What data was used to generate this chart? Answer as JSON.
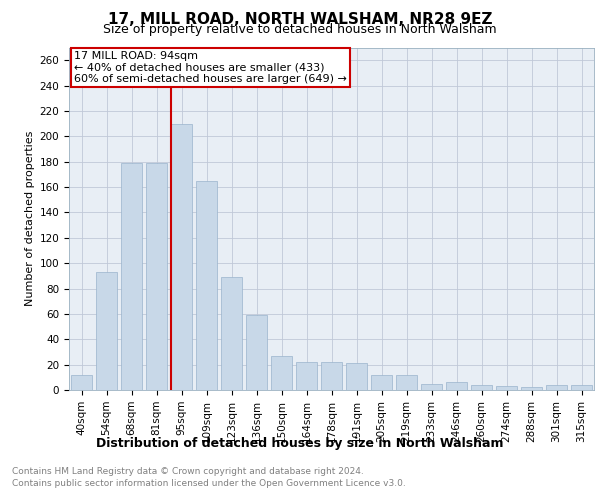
{
  "title": "17, MILL ROAD, NORTH WALSHAM, NR28 9EZ",
  "subtitle": "Size of property relative to detached houses in North Walsham",
  "xlabel": "Distribution of detached houses by size in North Walsham",
  "ylabel": "Number of detached properties",
  "footer_line1": "Contains HM Land Registry data © Crown copyright and database right 2024.",
  "footer_line2": "Contains public sector information licensed under the Open Government Licence v3.0.",
  "categories": [
    "40sqm",
    "54sqm",
    "68sqm",
    "81sqm",
    "95sqm",
    "109sqm",
    "123sqm",
    "136sqm",
    "150sqm",
    "164sqm",
    "178sqm",
    "191sqm",
    "205sqm",
    "219sqm",
    "233sqm",
    "246sqm",
    "260sqm",
    "274sqm",
    "288sqm",
    "301sqm",
    "315sqm"
  ],
  "values": [
    12,
    93,
    179,
    179,
    210,
    165,
    89,
    59,
    27,
    22,
    22,
    21,
    12,
    12,
    5,
    6,
    4,
    3,
    2,
    4,
    4
  ],
  "bar_color": "#c8d8e8",
  "bar_edge_color": "#9ab4cc",
  "property_line_index": 4,
  "property_label": "17 MILL ROAD: 94sqm",
  "annotation_line1": "← 40% of detached houses are smaller (433)",
  "annotation_line2": "60% of semi-detached houses are larger (649) →",
  "annotation_box_color": "#ffffff",
  "annotation_box_edge": "#cc0000",
  "property_line_color": "#cc0000",
  "ylim": [
    0,
    270
  ],
  "yticks": [
    0,
    20,
    40,
    60,
    80,
    100,
    120,
    140,
    160,
    180,
    200,
    220,
    240,
    260
  ],
  "grid_color": "#c0c8d8",
  "background_color": "#e8eef5",
  "title_fontsize": 11,
  "subtitle_fontsize": 9,
  "ylabel_fontsize": 8,
  "xlabel_fontsize": 9,
  "tick_fontsize": 7.5,
  "footer_fontsize": 6.5
}
